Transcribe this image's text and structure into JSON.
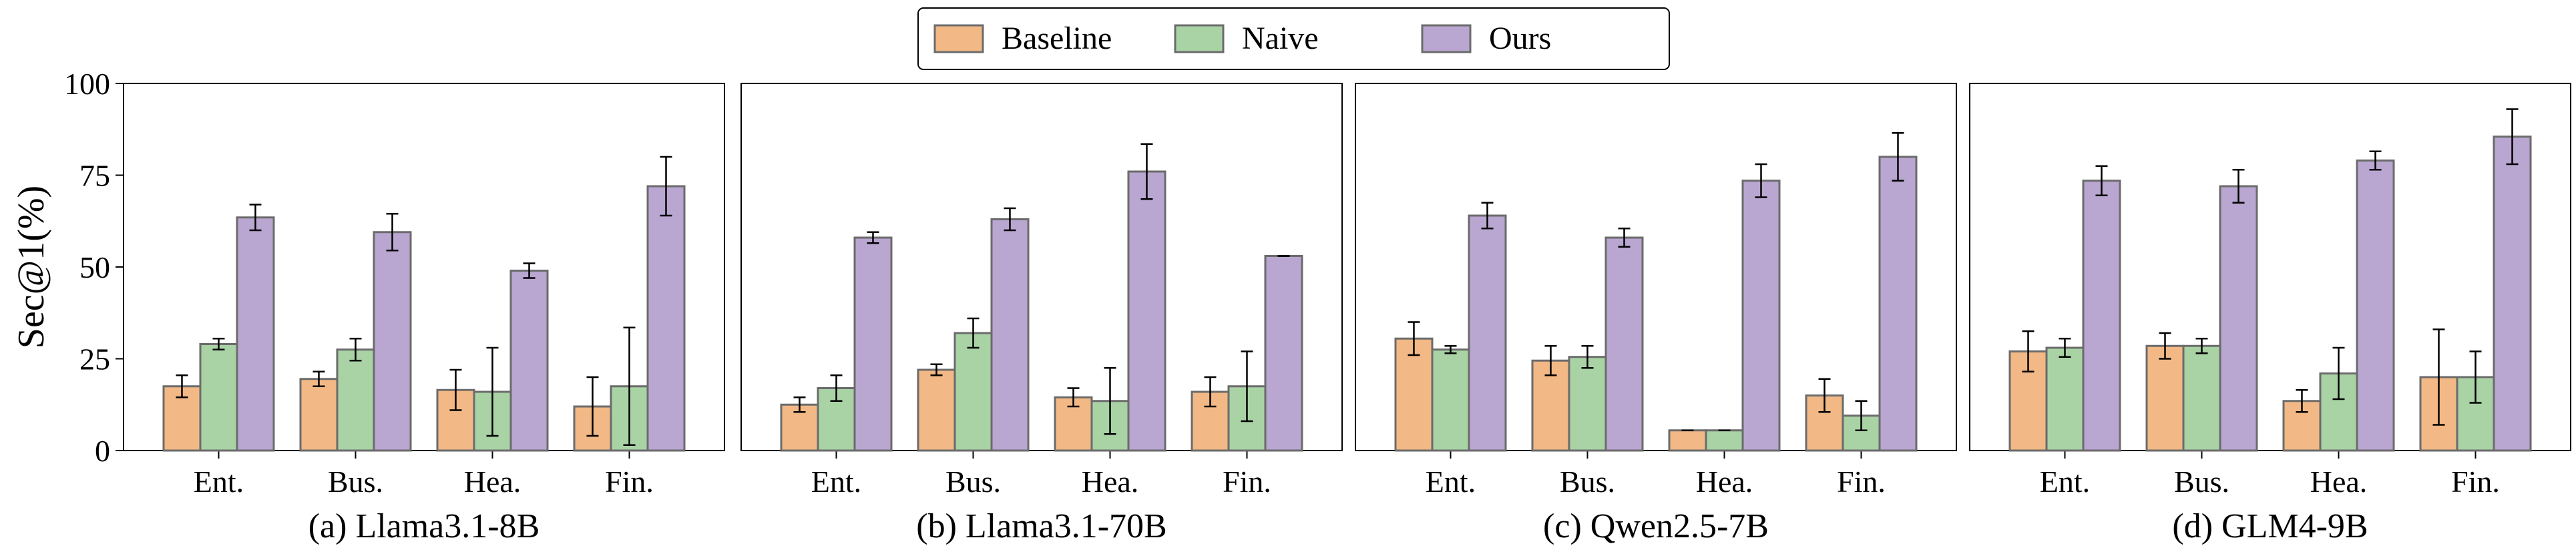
{
  "chart_data": {
    "type": "bar",
    "ylabel": "Sec@1(%)",
    "ylim": [
      0,
      100
    ],
    "yticks": [
      0,
      25,
      50,
      75,
      100
    ],
    "categories": [
      "Ent.",
      "Bus.",
      "Hea.",
      "Fin."
    ],
    "legend": {
      "placement": "top-center",
      "entries": [
        "Baseline",
        "Naive",
        "Ours"
      ]
    },
    "colors": {
      "Baseline": "#f2b885",
      "Naive": "#a9d3a5",
      "Ours": "#b9a6d1",
      "edge": "#6b6b6b"
    },
    "panels": [
      {
        "title": "(a) Llama3.1-8B",
        "series": [
          {
            "name": "Baseline",
            "values": [
              17.5,
              19.5,
              16.5,
              12.0
            ],
            "errors": [
              3.0,
              2.0,
              5.5,
              8.0
            ]
          },
          {
            "name": "Naive",
            "values": [
              29.0,
              27.5,
              16.0,
              17.5
            ],
            "errors": [
              1.5,
              3.0,
              12.0,
              16.0
            ]
          },
          {
            "name": "Ours",
            "values": [
              63.5,
              59.5,
              49.0,
              72.0
            ],
            "errors": [
              3.5,
              5.0,
              2.0,
              8.0
            ]
          }
        ]
      },
      {
        "title": "(b) Llama3.1-70B",
        "series": [
          {
            "name": "Baseline",
            "values": [
              12.5,
              22.0,
              14.5,
              16.0
            ],
            "errors": [
              2.0,
              1.5,
              2.5,
              4.0
            ]
          },
          {
            "name": "Naive",
            "values": [
              17.0,
              32.0,
              13.5,
              17.5
            ],
            "errors": [
              3.5,
              4.0,
              9.0,
              9.5
            ]
          },
          {
            "name": "Ours",
            "values": [
              58.0,
              63.0,
              76.0,
              53.0
            ],
            "errors": [
              1.5,
              3.0,
              7.5,
              0.0
            ]
          }
        ]
      },
      {
        "title": "(c) Qwen2.5-7B",
        "series": [
          {
            "name": "Baseline",
            "values": [
              30.5,
              24.5,
              5.5,
              15.0
            ],
            "errors": [
              4.5,
              4.0,
              0.0,
              4.5
            ]
          },
          {
            "name": "Naive",
            "values": [
              27.5,
              25.5,
              5.5,
              9.5
            ],
            "errors": [
              1.0,
              3.0,
              0.0,
              4.0
            ]
          },
          {
            "name": "Ours",
            "values": [
              64.0,
              58.0,
              73.5,
              80.0
            ],
            "errors": [
              3.5,
              2.5,
              4.5,
              6.5
            ]
          }
        ]
      },
      {
        "title": "(d) GLM4-9B",
        "series": [
          {
            "name": "Baseline",
            "values": [
              27.0,
              28.5,
              13.5,
              20.0
            ],
            "errors": [
              5.5,
              3.5,
              3.0,
              13.0
            ]
          },
          {
            "name": "Naive",
            "values": [
              28.0,
              28.5,
              21.0,
              20.0
            ],
            "errors": [
              2.5,
              2.0,
              7.0,
              7.0
            ]
          },
          {
            "name": "Ours",
            "values": [
              73.5,
              72.0,
              79.0,
              85.5
            ],
            "errors": [
              4.0,
              4.5,
              2.5,
              7.5
            ]
          }
        ]
      }
    ]
  }
}
